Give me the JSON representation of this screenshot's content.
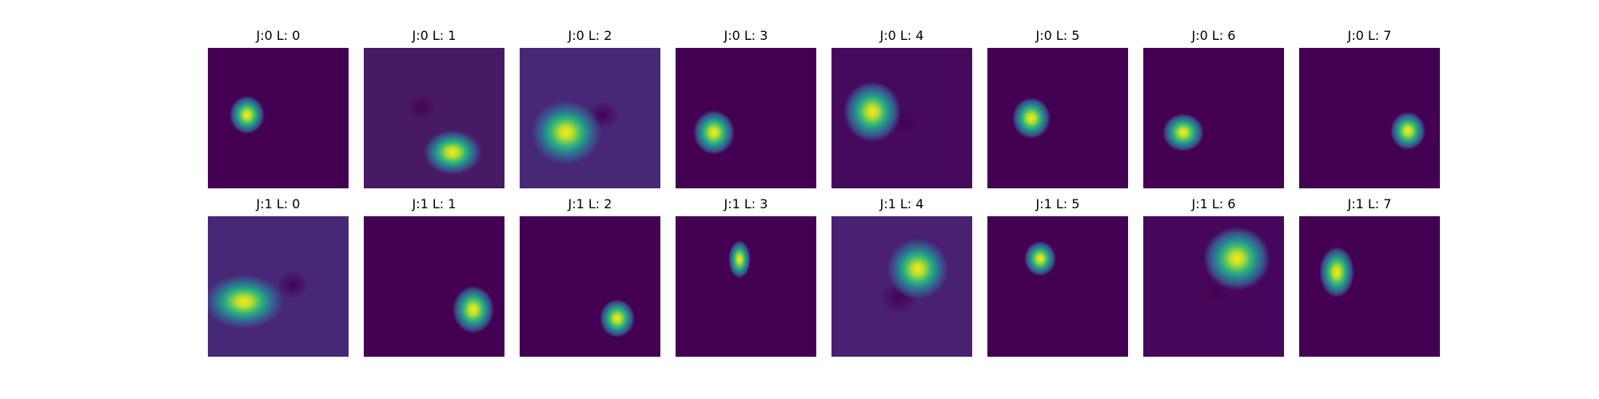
{
  "figure": {
    "background_color": "#440154",
    "colormap": [
      "#440154",
      "#3b528b",
      "#21918c",
      "#5ec962",
      "#fde725"
    ],
    "panels": [
      {
        "row": 0,
        "title": "J:0 L: 0"
      },
      {
        "row": 0,
        "title": "J:0 L: 1"
      },
      {
        "row": 0,
        "title": "J:0 L: 2"
      },
      {
        "row": 0,
        "title": "J:0 L: 3"
      },
      {
        "row": 0,
        "title": "J:0 L: 4"
      },
      {
        "row": 0,
        "title": "J:0 L: 5"
      },
      {
        "row": 0,
        "title": "J:0 L: 6"
      },
      {
        "row": 0,
        "title": "J:0 L: 7"
      },
      {
        "row": 1,
        "title": "J:1 L: 0"
      },
      {
        "row": 1,
        "title": "J:1 L: 1"
      },
      {
        "row": 1,
        "title": "J:1 L: 2"
      },
      {
        "row": 1,
        "title": "J:1 L: 3"
      },
      {
        "row": 1,
        "title": "J:1 L: 4"
      },
      {
        "row": 1,
        "title": "J:1 L: 5"
      },
      {
        "row": 1,
        "title": "J:1 L: 6"
      },
      {
        "row": 1,
        "title": "J:1 L: 7"
      }
    ]
  }
}
